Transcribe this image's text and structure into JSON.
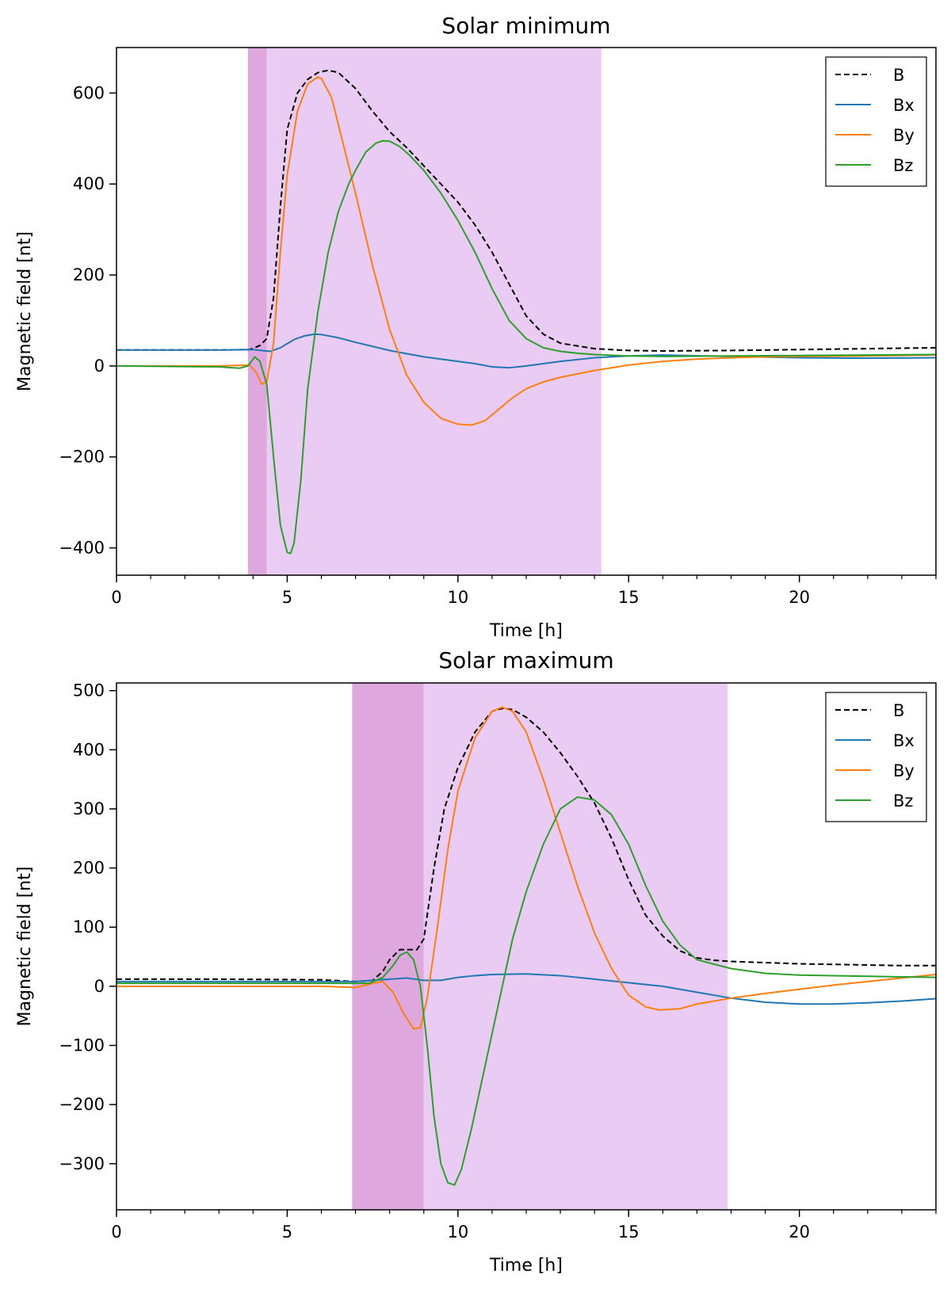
{
  "chart_data": [
    {
      "type": "line",
      "title": "Solar minimum",
      "xlabel": "Time [h]",
      "ylabel": "Magnetic field [nt]",
      "xlim": [
        0,
        24
      ],
      "ylim": [
        -460,
        700
      ],
      "xticks": [
        0,
        5,
        10,
        15,
        20
      ],
      "yticks": [
        -400,
        -200,
        0,
        200,
        400,
        600
      ],
      "ytick_labels": [
        "−400",
        "−200",
        "0",
        "200",
        "400",
        "600"
      ],
      "minor_step": 1,
      "legend_position": "top-right",
      "shaded_regions": [
        {
          "start": 3.85,
          "end": 4.4,
          "color": "#dea8de"
        },
        {
          "start": 4.4,
          "end": 14.2,
          "color": "#eacbf3"
        }
      ],
      "series": [
        {
          "name": "B",
          "color": "#000000",
          "dashed": true,
          "x": [
            0,
            3,
            3.9,
            4.2,
            4.4,
            4.6,
            4.8,
            5.0,
            5.3,
            5.6,
            5.9,
            6.2,
            6.5,
            7.0,
            7.5,
            8.0,
            8.5,
            9.0,
            9.5,
            10.0,
            10.5,
            11.0,
            11.5,
            12.0,
            12.5,
            13.0,
            14.0,
            15.0,
            16.0,
            18.0,
            20.0,
            22.0,
            24.0
          ],
          "y": [
            35,
            35,
            36,
            45,
            60,
            150,
            350,
            520,
            600,
            630,
            645,
            650,
            645,
            610,
            560,
            515,
            480,
            440,
            400,
            360,
            310,
            250,
            180,
            110,
            70,
            50,
            38,
            34,
            33,
            34,
            36,
            38,
            40
          ]
        },
        {
          "name": "Bx",
          "color": "#1f77b4",
          "dashed": false,
          "x": [
            0,
            3,
            4.0,
            4.5,
            4.8,
            5.2,
            5.5,
            5.8,
            6.0,
            6.5,
            7.0,
            8.0,
            9.0,
            10.0,
            10.5,
            11.0,
            11.5,
            12.0,
            13.0,
            14.0,
            15.0,
            16.0,
            18.0,
            20.0,
            22.0,
            24.0
          ],
          "y": [
            35,
            35,
            36,
            32,
            40,
            58,
            66,
            70,
            69,
            62,
            52,
            34,
            20,
            10,
            5,
            -2,
            -4,
            0,
            10,
            18,
            22,
            24,
            21,
            18,
            17,
            18
          ]
        },
        {
          "name": "By",
          "color": "#ff7f0e",
          "dashed": false,
          "x": [
            0,
            3,
            3.9,
            4.1,
            4.25,
            4.4,
            4.6,
            4.8,
            5.0,
            5.3,
            5.6,
            5.9,
            6.0,
            6.3,
            6.6,
            7.0,
            7.5,
            8.0,
            8.5,
            9.0,
            9.5,
            10.0,
            10.4,
            10.8,
            11.2,
            11.6,
            12.0,
            12.5,
            13.0,
            14.0,
            15.0,
            16.0,
            17.0,
            18.0,
            19.0,
            20.0,
            22.0,
            24.0
          ],
          "y": [
            0,
            0,
            2,
            -15,
            -40,
            -35,
            50,
            250,
            420,
            560,
            620,
            635,
            632,
            590,
            500,
            380,
            220,
            80,
            -20,
            -80,
            -115,
            -128,
            -130,
            -120,
            -95,
            -70,
            -50,
            -35,
            -25,
            -10,
            2,
            10,
            15,
            18,
            20,
            21,
            22,
            24
          ]
        },
        {
          "name": "Bz",
          "color": "#2ca02c",
          "dashed": false,
          "x": [
            0,
            3,
            3.6,
            3.85,
            4.05,
            4.2,
            4.4,
            4.6,
            4.8,
            5.0,
            5.1,
            5.2,
            5.4,
            5.6,
            5.9,
            6.2,
            6.5,
            6.8,
            7.0,
            7.3,
            7.6,
            7.8,
            8.0,
            8.3,
            8.6,
            9.0,
            9.5,
            10.0,
            10.5,
            11.0,
            11.5,
            12.0,
            12.5,
            13.0,
            13.5,
            14.0,
            15.0,
            16.0,
            18.0,
            20.0,
            22.0,
            24.0
          ],
          "y": [
            0,
            -2,
            -5,
            0,
            20,
            10,
            -40,
            -200,
            -350,
            -410,
            -412,
            -390,
            -250,
            -50,
            120,
            250,
            340,
            400,
            430,
            470,
            490,
            495,
            494,
            482,
            462,
            430,
            380,
            320,
            250,
            170,
            100,
            60,
            40,
            32,
            28,
            25,
            22,
            21,
            22,
            23,
            24,
            25
          ]
        }
      ]
    },
    {
      "type": "line",
      "title": "Solar maximum",
      "xlabel": "Time [h]",
      "ylabel": "Magnetic field [nt]",
      "xlim": [
        0,
        24
      ],
      "ylim": [
        -378,
        513
      ],
      "xticks": [
        0,
        5,
        10,
        15,
        20
      ],
      "yticks": [
        -300,
        -200,
        -100,
        0,
        100,
        200,
        300,
        400,
        500
      ],
      "ytick_labels": [
        "−300",
        "−200",
        "−100",
        "0",
        "100",
        "200",
        "300",
        "400",
        "500"
      ],
      "minor_step": 1,
      "legend_position": "top-right",
      "shaded_regions": [
        {
          "start": 6.9,
          "end": 9.0,
          "color": "#dea8de"
        },
        {
          "start": 9.0,
          "end": 17.9,
          "color": "#eacbf3"
        }
      ],
      "series": [
        {
          "name": "B",
          "color": "#000000",
          "dashed": true,
          "x": [
            0,
            3,
            6,
            7.0,
            7.5,
            7.8,
            8.0,
            8.3,
            8.6,
            8.8,
            9.0,
            9.3,
            9.6,
            10.0,
            10.5,
            11.0,
            11.3,
            11.6,
            12.0,
            12.5,
            13.0,
            13.5,
            14.0,
            14.5,
            15.0,
            15.5,
            16.0,
            16.5,
            17.0,
            17.5,
            18.0,
            19.0,
            20.0,
            21.0,
            22.0,
            23.0,
            24.0
          ],
          "y": [
            12,
            12,
            11,
            8,
            10,
            25,
            45,
            62,
            62,
            62,
            80,
            200,
            300,
            370,
            430,
            465,
            470,
            468,
            455,
            430,
            395,
            355,
            310,
            250,
            180,
            120,
            85,
            60,
            48,
            44,
            42,
            40,
            38,
            37,
            36,
            35,
            35
          ]
        },
        {
          "name": "Bx",
          "color": "#1f77b4",
          "dashed": false,
          "x": [
            0,
            3,
            6,
            7,
            8,
            8.5,
            9,
            9.5,
            10,
            10.5,
            11,
            12,
            13,
            14,
            15,
            16,
            17,
            18,
            19,
            20,
            21,
            22,
            23,
            24
          ],
          "y": [
            8,
            8,
            8,
            8,
            12,
            14,
            10,
            10,
            15,
            18,
            20,
            21,
            18,
            12,
            6,
            0,
            -10,
            -20,
            -27,
            -30,
            -30,
            -28,
            -25,
            -21
          ]
        },
        {
          "name": "By",
          "color": "#ff7f0e",
          "dashed": false,
          "x": [
            0,
            3,
            6,
            7.0,
            7.5,
            7.8,
            8.1,
            8.4,
            8.7,
            8.9,
            9.1,
            9.4,
            9.7,
            10.0,
            10.5,
            11.0,
            11.3,
            11.6,
            12.0,
            12.5,
            13.0,
            13.5,
            14.0,
            14.5,
            15.0,
            15.5,
            15.9,
            16.5,
            17.0,
            18.0,
            19.0,
            20.0,
            21.0,
            22.0,
            23.0,
            24.0
          ],
          "y": [
            0,
            0,
            0,
            -2,
            5,
            8,
            -10,
            -45,
            -72,
            -70,
            -20,
            100,
            230,
            330,
            420,
            465,
            472,
            465,
            430,
            350,
            260,
            170,
            90,
            30,
            -15,
            -35,
            -40,
            -38,
            -30,
            -20,
            -12,
            -5,
            2,
            8,
            14,
            20
          ]
        },
        {
          "name": "Bz",
          "color": "#2ca02c",
          "dashed": false,
          "x": [
            0,
            3,
            6,
            7.0,
            7.4,
            7.8,
            8.1,
            8.3,
            8.5,
            8.7,
            8.9,
            9.1,
            9.3,
            9.5,
            9.7,
            9.9,
            10.1,
            10.4,
            10.7,
            11.0,
            11.3,
            11.6,
            12.0,
            12.5,
            13.0,
            13.5,
            14.0,
            14.5,
            15.0,
            15.5,
            16.0,
            16.5,
            17.0,
            18.0,
            19.0,
            20.0,
            21.0,
            22.0,
            23.0,
            24.0
          ],
          "y": [
            5,
            5,
            5,
            5,
            5,
            15,
            35,
            52,
            58,
            45,
            0,
            -100,
            -220,
            -300,
            -332,
            -336,
            -310,
            -240,
            -160,
            -80,
            0,
            80,
            160,
            240,
            300,
            320,
            315,
            290,
            240,
            170,
            110,
            70,
            45,
            30,
            22,
            19,
            18,
            17,
            16,
            15
          ]
        }
      ]
    }
  ]
}
